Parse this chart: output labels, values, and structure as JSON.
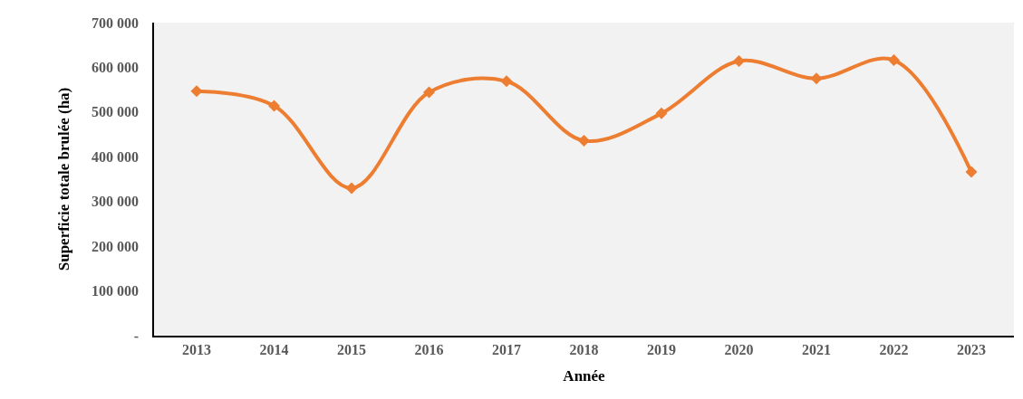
{
  "chart_data": {
    "type": "line",
    "xlabel": "Année",
    "ylabel": "Superficie totale brulée (ha)",
    "categories": [
      "2013",
      "2014",
      "2015",
      "2016",
      "2017",
      "2018",
      "2019",
      "2020",
      "2021",
      "2022",
      "2023"
    ],
    "series": [
      {
        "color": "#ed7d31",
        "values": [
          547000,
          514000,
          330000,
          544000,
          569000,
          436000,
          497000,
          614000,
          575000,
          616000,
          366000
        ]
      }
    ],
    "ylim": [
      0,
      700000
    ],
    "yticks": [
      {
        "value": 0,
        "label": "-"
      },
      {
        "value": 100000,
        "label": "100 000"
      },
      {
        "value": 200000,
        "label": "200 000"
      },
      {
        "value": 300000,
        "label": "300 000"
      },
      {
        "value": 400000,
        "label": "400 000"
      },
      {
        "value": 500000,
        "label": "500 000"
      },
      {
        "value": 600000,
        "label": "600 000"
      },
      {
        "value": 700000,
        "label": "700 000"
      }
    ],
    "marker": "diamond",
    "line_style": "solid",
    "grid": false,
    "legend": false
  }
}
